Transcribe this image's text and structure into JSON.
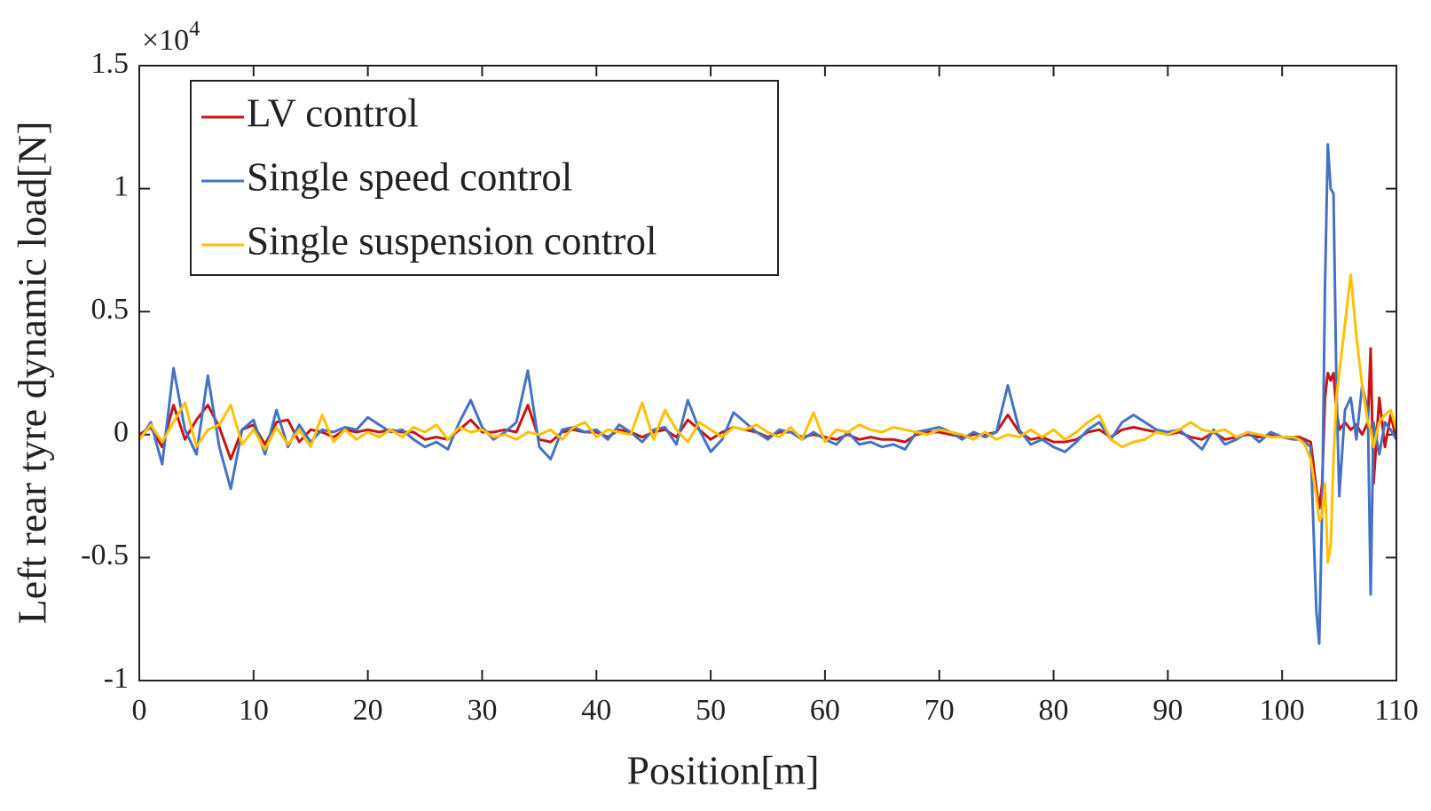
{
  "chart_data": {
    "type": "line",
    "ylabel": "Left rear tyre dynamic load[N]",
    "xlabel": "Position[m]",
    "y_multiplier": {
      "base": "×10",
      "exponent": "4"
    },
    "xlim": [
      0,
      110
    ],
    "xticks": [
      0,
      10,
      20,
      30,
      40,
      50,
      60,
      70,
      80,
      90,
      100,
      110
    ],
    "ylim": [
      -1,
      1.5
    ],
    "yticks": [
      -1,
      -0.5,
      0,
      0.5,
      1,
      1.5
    ],
    "grid": false,
    "legend": "upper left",
    "x": [
      0,
      1,
      2,
      3,
      4,
      5,
      6,
      7,
      8,
      9,
      10,
      11,
      12,
      13,
      14,
      15,
      16,
      17,
      18,
      19,
      20,
      21,
      22,
      23,
      24,
      25,
      26,
      27,
      28,
      29,
      30,
      31,
      32,
      33,
      34,
      35,
      36,
      37,
      38,
      39,
      40,
      41,
      42,
      43,
      44,
      45,
      46,
      47,
      48,
      49,
      50,
      51,
      52,
      53,
      54,
      55,
      56,
      57,
      58,
      59,
      60,
      61,
      62,
      63,
      64,
      65,
      66,
      67,
      68,
      69,
      70,
      71,
      72,
      73,
      74,
      75,
      76,
      77,
      78,
      79,
      80,
      81,
      82,
      83,
      84,
      85,
      86,
      87,
      88,
      89,
      90,
      91,
      92,
      93,
      94,
      95,
      96,
      97,
      98,
      99,
      100,
      101,
      101.5,
      102,
      102.5,
      103,
      103.25,
      103.5,
      103.75,
      104,
      104.25,
      104.5,
      104.75,
      105,
      105.5,
      106,
      106.5,
      107,
      107.5,
      107.75,
      108,
      108.5,
      109,
      109.5,
      110
    ],
    "series": [
      {
        "name": "LV control",
        "color": "#c81414",
        "values": [
          0,
          0.03,
          -0.05,
          0.12,
          -0.02,
          0.06,
          0.12,
          0.03,
          -0.1,
          0.02,
          0.04,
          -0.04,
          0.05,
          0.06,
          -0.03,
          0.02,
          0.01,
          -0.01,
          0.02,
          0.01,
          0.02,
          0.01,
          0.02,
          0.01,
          0.01,
          -0.02,
          -0.01,
          -0.02,
          0.02,
          0.06,
          0.01,
          0.01,
          0.02,
          0.01,
          0.12,
          -0.02,
          -0.03,
          0.01,
          0.02,
          0.01,
          0.01,
          -0.01,
          0.02,
          0.01,
          -0.01,
          0.01,
          0.02,
          -0.01,
          0.06,
          0.02,
          -0.02,
          0.01,
          0.03,
          0.02,
          0.01,
          -0.01,
          0.01,
          0.01,
          -0.01,
          0,
          -0.01,
          -0.02,
          0,
          -0.02,
          -0.01,
          -0.02,
          -0.02,
          -0.03,
          0,
          0.01,
          0.01,
          0,
          -0.01,
          0,
          0,
          0.01,
          0.08,
          0.01,
          -0.02,
          -0.01,
          -0.03,
          -0.03,
          -0.02,
          0.01,
          0.02,
          -0.01,
          0.02,
          0.03,
          0.02,
          0.01,
          0,
          0.01,
          -0.01,
          -0.02,
          0.01,
          -0.02,
          -0.01,
          0,
          -0.01,
          0,
          -0.01,
          -0.01,
          -0.01,
          -0.02,
          -0.03,
          -0.22,
          -0.3,
          -0.2,
          0.15,
          0.25,
          0.22,
          0.25,
          0.1,
          0.02,
          0.05,
          0.02,
          0.04,
          0,
          0.05,
          0.35,
          -0.2,
          0.15,
          -0.05,
          0.08,
          -0.02
        ]
      },
      {
        "name": "Single speed control",
        "color": "#4472c4",
        "values": [
          -0.02,
          0.05,
          -0.12,
          0.27,
          0.02,
          -0.08,
          0.24,
          -0.05,
          -0.22,
          0.02,
          0.06,
          -0.08,
          0.1,
          -0.05,
          0.04,
          -0.03,
          0.02,
          0.01,
          0.03,
          0.02,
          0.07,
          0.04,
          0.01,
          0.02,
          -0.02,
          -0.05,
          -0.03,
          -0.06,
          0.05,
          0.14,
          0.03,
          -0.02,
          0.01,
          0.05,
          0.26,
          -0.05,
          -0.1,
          0.02,
          0.03,
          0.01,
          0.02,
          -0.02,
          0.04,
          0.01,
          -0.03,
          0.02,
          0.03,
          -0.04,
          0.14,
          0.02,
          -0.07,
          -0.02,
          0.09,
          0.05,
          0.01,
          -0.02,
          0.02,
          0.01,
          -0.02,
          0.01,
          -0.02,
          -0.04,
          0.01,
          -0.04,
          -0.03,
          -0.05,
          -0.04,
          -0.06,
          0.01,
          0.02,
          0.03,
          0.01,
          -0.02,
          0.01,
          -0.01,
          0.01,
          0.2,
          0.02,
          -0.04,
          -0.02,
          -0.05,
          -0.07,
          -0.03,
          0.02,
          0.05,
          -0.02,
          0.05,
          0.08,
          0.05,
          0.02,
          0.01,
          0.02,
          -0.02,
          -0.06,
          0.02,
          -0.04,
          -0.02,
          0.01,
          -0.03,
          0.01,
          -0.01,
          -0.02,
          -0.02,
          -0.03,
          -0.05,
          -0.72,
          -0.85,
          -0.3,
          0.6,
          1.18,
          1,
          0.98,
          0.2,
          -0.25,
          0.1,
          0.15,
          -0.02,
          0.2,
          0.1,
          -0.65,
          0.05,
          -0.08,
          0.05,
          0.02,
          -0.02
        ]
      },
      {
        "name": "Single suspension control",
        "color": "#ffc000",
        "values": [
          -0.02,
          0.04,
          -0.03,
          0.05,
          0.13,
          -0.05,
          0.02,
          0.04,
          0.12,
          -0.04,
          0.02,
          -0.06,
          0.03,
          -0.04,
          0.02,
          -0.05,
          0.08,
          -0.03,
          0.02,
          -0.02,
          0.01,
          -0.01,
          0.02,
          -0.01,
          0.03,
          0.01,
          0.04,
          -0.02,
          0.03,
          0.01,
          0.02,
          -0.01,
          0,
          -0.02,
          0.01,
          0,
          0.02,
          -0.02,
          0.03,
          0.05,
          -0.01,
          0.02,
          0.01,
          0,
          0.13,
          -0.02,
          0.1,
          0.02,
          -0.03,
          0.05,
          0.02,
          -0.01,
          0.03,
          0.02,
          0.04,
          0.01,
          -0.01,
          0.03,
          -0.02,
          0.09,
          -0.03,
          0.02,
          0.01,
          0.04,
          0.02,
          0.01,
          0.03,
          0.02,
          0.01,
          0,
          0.02,
          0.01,
          0,
          -0.02,
          0.01,
          -0.02,
          0,
          -0.01,
          0.02,
          -0.01,
          0.02,
          -0.02,
          0.01,
          0.05,
          0.08,
          -0.02,
          -0.05,
          -0.03,
          -0.02,
          0.01,
          0,
          0.02,
          0.05,
          0.02,
          0.01,
          0.02,
          -0.01,
          0.01,
          0,
          -0.01,
          -0.01,
          -0.01,
          -0.02,
          -0.04,
          -0.1,
          -0.25,
          -0.35,
          -0.33,
          -0.2,
          -0.52,
          -0.45,
          -0.1,
          0.15,
          0.25,
          0.45,
          0.65,
          0.4,
          0.2,
          0.05,
          0.02,
          -0.05,
          0.05,
          0.08,
          0.1,
          0.02
        ]
      }
    ]
  }
}
